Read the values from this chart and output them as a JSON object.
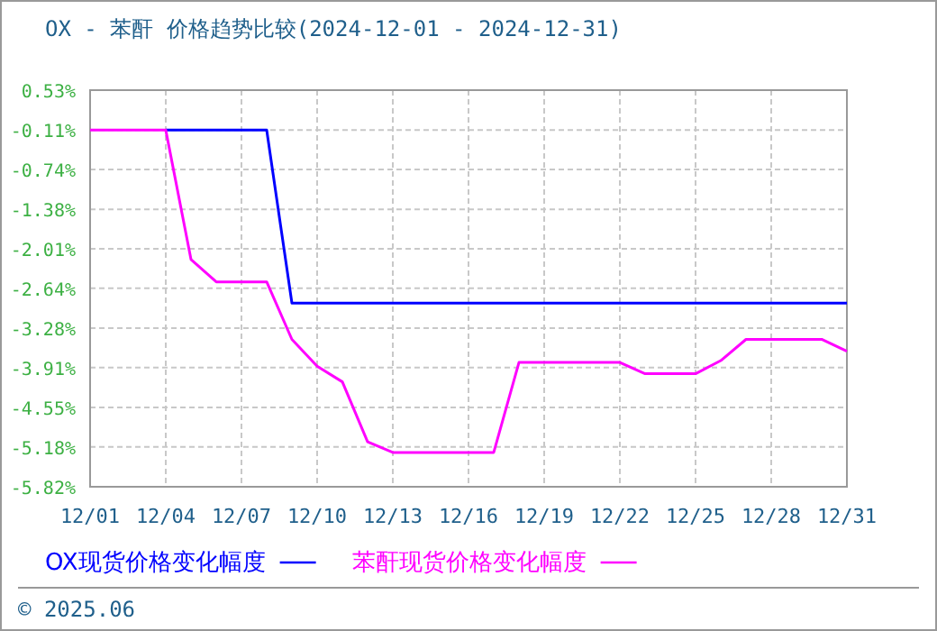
{
  "chart_data": {
    "type": "line",
    "title": "OX - 苯酐 价格趋势比较(2024-12-01 - 2024-12-31)",
    "x": [
      "2024-12-01",
      "2024-12-02",
      "2024-12-03",
      "2024-12-04",
      "2024-12-05",
      "2024-12-06",
      "2024-12-07",
      "2024-12-08",
      "2024-12-09",
      "2024-12-10",
      "2024-12-11",
      "2024-12-12",
      "2024-12-13",
      "2024-12-14",
      "2024-12-15",
      "2024-12-16",
      "2024-12-17",
      "2024-12-18",
      "2024-12-19",
      "2024-12-20",
      "2024-12-21",
      "2024-12-22",
      "2024-12-23",
      "2024-12-24",
      "2024-12-25",
      "2024-12-26",
      "2024-12-27",
      "2024-12-28",
      "2024-12-29",
      "2024-12-30",
      "2024-12-31"
    ],
    "series": [
      {
        "name": "OX现货价格变化幅度",
        "color": "#0000ff",
        "values": [
          null,
          null,
          null,
          -0.11,
          -0.11,
          -0.11,
          -0.11,
          -0.11,
          -2.88,
          -2.88,
          -2.88,
          -2.88,
          -2.88,
          -2.88,
          -2.88,
          -2.88,
          -2.88,
          -2.88,
          -2.88,
          -2.88,
          -2.88,
          -2.88,
          -2.88,
          -2.88,
          -2.88,
          -2.88,
          -2.88,
          -2.88,
          -2.88,
          -2.88,
          -2.88
        ]
      },
      {
        "name": "苯酐现货价格变化幅度",
        "color": "#ff00ff",
        "values": [
          -0.11,
          -0.11,
          -0.11,
          -0.11,
          -2.18,
          -2.54,
          -2.54,
          -2.54,
          -3.46,
          -3.89,
          -4.14,
          -5.1,
          -5.27,
          -5.27,
          -5.27,
          -5.27,
          -5.27,
          -3.83,
          -3.83,
          -3.83,
          -3.83,
          -3.83,
          -4.01,
          -4.01,
          -4.01,
          -3.8,
          -3.46,
          -3.46,
          -3.46,
          -3.46,
          -3.65
        ]
      }
    ],
    "xlim": [
      "2024-12-01",
      "2024-12-31"
    ],
    "xticks": [
      {
        "value": "2024-12-01",
        "label": "12/01"
      },
      {
        "value": "2024-12-04",
        "label": "12/04"
      },
      {
        "value": "2024-12-07",
        "label": "12/07"
      },
      {
        "value": "2024-12-10",
        "label": "12/10"
      },
      {
        "value": "2024-12-13",
        "label": "12/13"
      },
      {
        "value": "2024-12-16",
        "label": "12/16"
      },
      {
        "value": "2024-12-19",
        "label": "12/19"
      },
      {
        "value": "2024-12-22",
        "label": "12/22"
      },
      {
        "value": "2024-12-25",
        "label": "12/25"
      },
      {
        "value": "2024-12-28",
        "label": "12/28"
      },
      {
        "value": "2024-12-31",
        "label": "12/31"
      }
    ],
    "ylim": [
      -5.82,
      0.53
    ],
    "yticks": [
      {
        "value": 0.53,
        "label": "0.53%"
      },
      {
        "value": -0.11,
        "label": "-0.11%"
      },
      {
        "value": -0.74,
        "label": "-0.74%"
      },
      {
        "value": -1.38,
        "label": "-1.38%"
      },
      {
        "value": -2.01,
        "label": "-2.01%"
      },
      {
        "value": -2.64,
        "label": "-2.64%"
      },
      {
        "value": -3.28,
        "label": "-3.28%"
      },
      {
        "value": -3.91,
        "label": "-3.91%"
      },
      {
        "value": -4.55,
        "label": "-4.55%"
      },
      {
        "value": -5.18,
        "label": "-5.18%"
      },
      {
        "value": -5.82,
        "label": "-5.82%"
      }
    ],
    "grid": true,
    "legend": "bottom",
    "marker": "none",
    "line_style": "solid",
    "annotations": [
      "© 2025.06"
    ]
  }
}
